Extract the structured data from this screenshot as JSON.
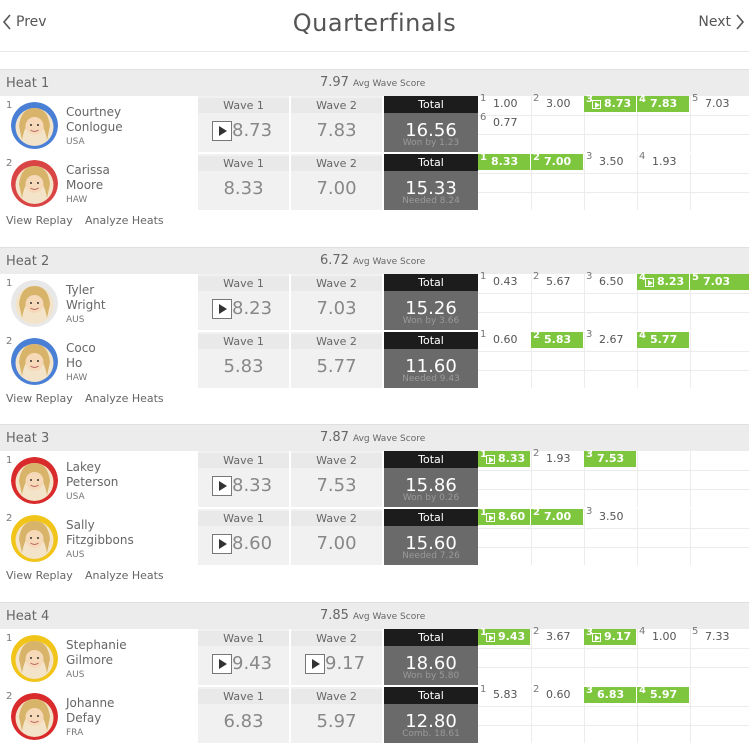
{
  "nav": {
    "prev": "Prev",
    "next": "Next",
    "title": "Quarterfinals"
  },
  "labels": {
    "wave1": "Wave 1",
    "wave2": "Wave 2",
    "total": "Total",
    "avg_suffix": "Avg Wave Score",
    "view_replay": "View Replay",
    "analyze_heats": "Analyze Heats"
  },
  "colors": {
    "highlight_green": "#7dc63e",
    "total_dark": "#1c1c1c",
    "total_bg": "#6a6a6a"
  },
  "heats": [
    {
      "name": "Heat 1",
      "avg": "7.97",
      "surfers": [
        {
          "rank": "1",
          "first": "Courtney",
          "last": "Conlogue",
          "country": "USA",
          "w1": "8.73",
          "w1_play": true,
          "w2": "7.83",
          "w2_play": false,
          "total": "16.56",
          "sub": "Won by 1.23",
          "avatar_color": "#4a7fd6",
          "waves": [
            {
              "n": "1",
              "v": "1.00"
            },
            {
              "n": "2",
              "v": "3.00"
            },
            {
              "n": "3",
              "v": "8.73",
              "g": true,
              "p": true
            },
            {
              "n": "4",
              "v": "7.83",
              "g": true
            },
            {
              "n": "5",
              "v": "7.03"
            },
            {
              "n": "6",
              "v": "0.77"
            }
          ]
        },
        {
          "rank": "2",
          "first": "Carissa",
          "last": "Moore",
          "country": "HAW",
          "w1": "8.33",
          "w1_play": false,
          "w2": "7.00",
          "w2_play": false,
          "total": "15.33",
          "sub": "Needed 8.24",
          "avatar_color": "#d94545",
          "waves": [
            {
              "n": "1",
              "v": "8.33",
              "g": true
            },
            {
              "n": "2",
              "v": "7.00",
              "g": true
            },
            {
              "n": "3",
              "v": "3.50"
            },
            {
              "n": "4",
              "v": "1.93"
            }
          ]
        }
      ]
    },
    {
      "name": "Heat 2",
      "avg": "6.72",
      "surfers": [
        {
          "rank": "1",
          "first": "Tyler",
          "last": "Wright",
          "country": "AUS",
          "w1": "8.23",
          "w1_play": true,
          "w2": "7.03",
          "w2_play": false,
          "total": "15.26",
          "sub": "Won by 3.66",
          "avatar_color": "#e8e8e8",
          "waves": [
            {
              "n": "1",
              "v": "0.43"
            },
            {
              "n": "2",
              "v": "5.67"
            },
            {
              "n": "3",
              "v": "6.50"
            },
            {
              "n": "4",
              "v": "8.23",
              "g": true,
              "p": true
            },
            {
              "n": "5",
              "v": "7.03",
              "g": true
            }
          ]
        },
        {
          "rank": "2",
          "first": "Coco",
          "last": "Ho",
          "country": "HAW",
          "w1": "5.83",
          "w1_play": false,
          "w2": "5.77",
          "w2_play": false,
          "total": "11.60",
          "sub": "Needed 9.43",
          "avatar_color": "#4a7fd6",
          "waves": [
            {
              "n": "1",
              "v": "0.60"
            },
            {
              "n": "2",
              "v": "5.83",
              "g": true
            },
            {
              "n": "3",
              "v": "2.67"
            },
            {
              "n": "4",
              "v": "5.77",
              "g": true
            }
          ]
        }
      ]
    },
    {
      "name": "Heat 3",
      "avg": "7.87",
      "surfers": [
        {
          "rank": "1",
          "first": "Lakey",
          "last": "Peterson",
          "country": "USA",
          "w1": "8.33",
          "w1_play": true,
          "w2": "7.53",
          "w2_play": false,
          "total": "15.86",
          "sub": "Won by 0.26",
          "avatar_color": "#d92b2b",
          "waves": [
            {
              "n": "1",
              "v": "8.33",
              "g": true,
              "p": true
            },
            {
              "n": "2",
              "v": "1.93"
            },
            {
              "n": "3",
              "v": "7.53",
              "g": true
            }
          ]
        },
        {
          "rank": "2",
          "first": "Sally",
          "last": "Fitzgibbons",
          "country": "AUS",
          "w1": "8.60",
          "w1_play": true,
          "w2": "7.00",
          "w2_play": false,
          "total": "15.60",
          "sub": "Needed 7.26",
          "avatar_color": "#f0c419",
          "waves": [
            {
              "n": "1",
              "v": "8.60",
              "g": true,
              "p": true
            },
            {
              "n": "2",
              "v": "7.00",
              "g": true
            },
            {
              "n": "3",
              "v": "3.50"
            }
          ]
        }
      ]
    },
    {
      "name": "Heat 4",
      "avg": "7.85",
      "surfers": [
        {
          "rank": "1",
          "first": "Stephanie",
          "last": "Gilmore",
          "country": "AUS",
          "w1": "9.43",
          "w1_play": true,
          "w2": "9.17",
          "w2_play": true,
          "total": "18.60",
          "sub": "Won by 5.80",
          "avatar_color": "#f0c419",
          "waves": [
            {
              "n": "1",
              "v": "9.43",
              "g": true,
              "p": true
            },
            {
              "n": "2",
              "v": "3.67"
            },
            {
              "n": "3",
              "v": "9.17",
              "g": true,
              "p": true
            },
            {
              "n": "4",
              "v": "1.00"
            },
            {
              "n": "5",
              "v": "7.33"
            }
          ]
        },
        {
          "rank": "2",
          "first": "Johanne",
          "last": "Defay",
          "country": "FRA",
          "w1": "6.83",
          "w1_play": false,
          "w2": "5.97",
          "w2_play": false,
          "total": "12.80",
          "sub": "Comb. 18.61",
          "avatar_color": "#d92b2b",
          "waves": [
            {
              "n": "1",
              "v": "5.83"
            },
            {
              "n": "2",
              "v": "0.60"
            },
            {
              "n": "3",
              "v": "6.83",
              "g": true
            },
            {
              "n": "4",
              "v": "5.97",
              "g": true
            }
          ]
        }
      ]
    }
  ]
}
